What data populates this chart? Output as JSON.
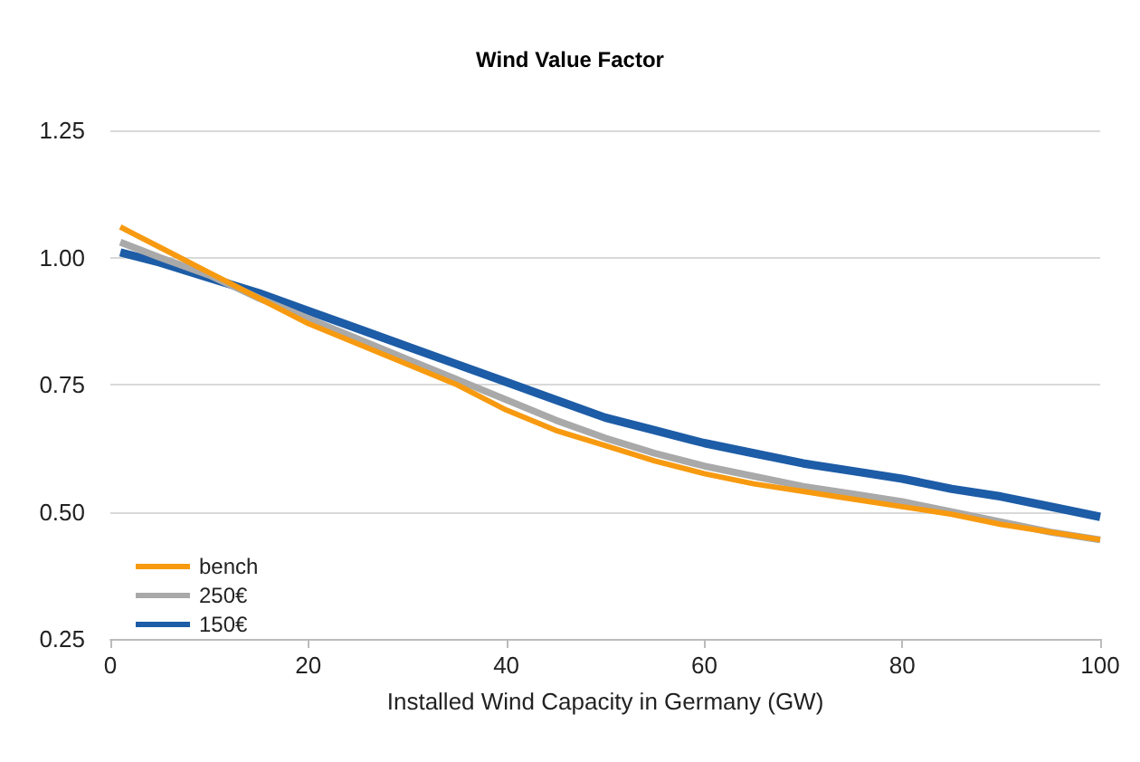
{
  "chart_data": {
    "type": "line",
    "title": "Wind Value Factor",
    "xlabel": "Installed Wind Capacity in Germany (GW)",
    "x": [
      1,
      5,
      10,
      15,
      20,
      25,
      30,
      35,
      40,
      45,
      50,
      55,
      60,
      65,
      70,
      75,
      80,
      85,
      90,
      95,
      100
    ],
    "series": [
      {
        "name": "bench",
        "color": "#f79a10",
        "values": [
          1.06,
          1.02,
          0.97,
          0.92,
          0.87,
          0.83,
          0.79,
          0.75,
          0.7,
          0.66,
          0.63,
          0.6,
          0.575,
          0.555,
          0.54,
          0.525,
          0.51,
          0.495,
          0.475,
          0.46,
          0.445
        ]
      },
      {
        "name": "250€",
        "color": "#a9a9a9",
        "values": [
          1.03,
          1.0,
          0.965,
          0.92,
          0.88,
          0.84,
          0.8,
          0.76,
          0.72,
          0.68,
          0.645,
          0.615,
          0.59,
          0.57,
          0.55,
          0.535,
          0.52,
          0.5,
          0.48,
          0.46,
          0.445
        ]
      },
      {
        "name": "150€",
        "color": "#1d5ca6",
        "values": [
          1.01,
          0.99,
          0.96,
          0.93,
          0.895,
          0.86,
          0.825,
          0.79,
          0.755,
          0.72,
          0.685,
          0.66,
          0.635,
          0.615,
          0.595,
          0.58,
          0.565,
          0.545,
          0.53,
          0.51,
          0.49
        ]
      }
    ],
    "xlim": [
      0,
      100
    ],
    "xticks": [
      0,
      20,
      40,
      60,
      80,
      100
    ],
    "ylim": [
      0.25,
      1.25
    ],
    "yticks": [
      {
        "value": 0.25,
        "label": "0.25"
      },
      {
        "value": 0.5,
        "label": "0.50"
      },
      {
        "value": 0.75,
        "label": "0.75"
      },
      {
        "value": 1,
        "label": "1.00"
      },
      {
        "value": 1.25,
        "label": "1.25"
      }
    ],
    "grid": "y",
    "legend": "bottom left",
    "marker": "none",
    "line_style": "solid"
  }
}
